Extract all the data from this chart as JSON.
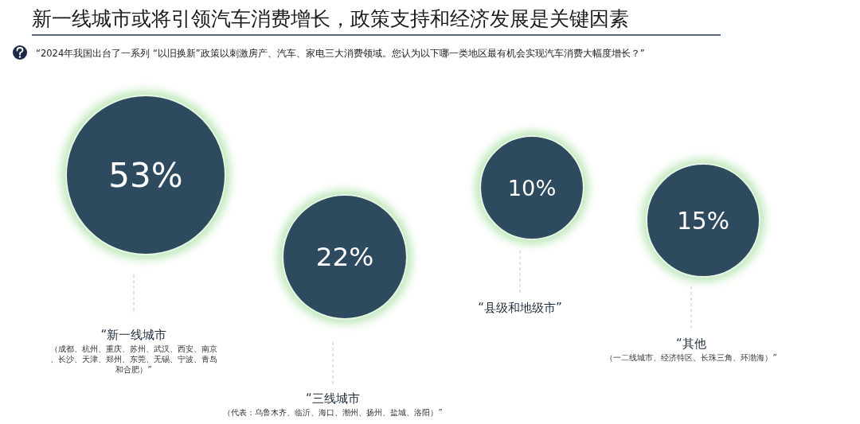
{
  "chart_data": {
    "type": "other",
    "title": "新一线城市或将引领汽车消费增长，政策支持和经济发展是关键因素",
    "subtitle": "“2024年我国出台了一系列 “以旧换新”政策以刺激房产、汽车、家电三大消费领域。您认为以下哪一类地区最有机会实现汽车消费大幅度增长？”",
    "categories": [
      "“新一线城市",
      "“三线城市",
      "“县级和地级市”",
      "“其他"
    ],
    "values": [
      53,
      22,
      10,
      15
    ],
    "value_labels": [
      "53%",
      "22%",
      "10%",
      "15%"
    ],
    "color": "#2e4a5e",
    "annotations": [
      {
        "text": "（成都、杭州、重庆、苏州、武汉、西安、南京、长沙、天津、郑州、东莞、无锡、宁波、青岛和合肥）”",
        "x": "“新一线城市"
      },
      {
        "text": "（代表：乌鲁木齐、临沂、海口、潮州、扬州、盐城、洛阳）”",
        "x": "“三线城市"
      },
      {
        "text": "（一二线城市、经济特区、长珠三角、环渤海）”",
        "x": "“其他"
      }
    ]
  }
}
